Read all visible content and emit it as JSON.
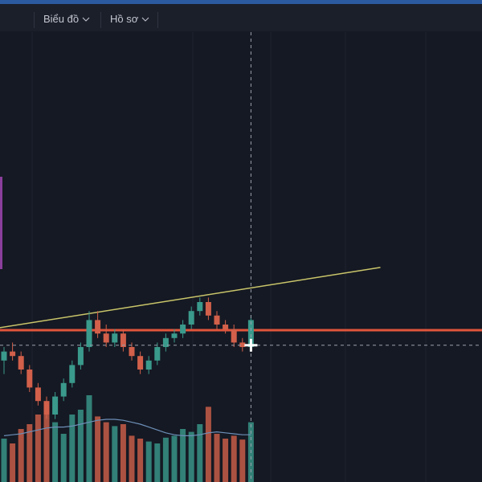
{
  "toolbar": {
    "items": [
      "Biểu đồ",
      "Hồ sơ"
    ]
  },
  "chart_data": {
    "type": "candlestick",
    "open": [
      27,
      29,
      28,
      25,
      21,
      18,
      15,
      19,
      22,
      26,
      30,
      36,
      33,
      31,
      33,
      30,
      28,
      25,
      27,
      30,
      32,
      33,
      35,
      38,
      40,
      37,
      35,
      34,
      31,
      30
    ],
    "high": [
      30,
      31,
      29,
      26,
      22,
      19,
      20,
      23,
      27,
      31,
      38,
      38,
      35,
      34,
      34,
      31,
      29,
      28,
      31,
      33,
      34,
      36,
      39,
      41,
      41,
      38,
      36,
      35,
      32,
      37
    ],
    "low": [
      24,
      27,
      24,
      20,
      17,
      14,
      14,
      18,
      21,
      25,
      29,
      32,
      30,
      30,
      29,
      27,
      24,
      24,
      26,
      29,
      31,
      32,
      34,
      37,
      36,
      34,
      33,
      30,
      29,
      29
    ],
    "close": [
      29,
      28,
      25,
      21,
      18,
      15,
      19,
      22,
      26,
      30,
      36,
      33,
      31,
      33,
      30,
      28,
      25,
      27,
      30,
      32,
      33,
      35,
      38,
      40,
      37,
      35,
      34,
      31,
      30,
      36
    ],
    "volume": [
      45,
      40,
      55,
      60,
      70,
      80,
      62,
      50,
      70,
      75,
      90,
      68,
      62,
      58,
      60,
      48,
      45,
      42,
      40,
      46,
      48,
      55,
      52,
      60,
      78,
      50,
      45,
      48,
      44,
      62
    ],
    "volume_ma": [
      48,
      49,
      50,
      52,
      54,
      56,
      57,
      57,
      58,
      60,
      62,
      64,
      65,
      65,
      64,
      62,
      60,
      57,
      54,
      51,
      49,
      48,
      48,
      49,
      51,
      52,
      51,
      50,
      49,
      49
    ],
    "ylim": [
      0,
      100
    ],
    "y2lim": [
      0,
      100
    ],
    "up_color": "#3a9a8c",
    "down_color": "#d2604a",
    "ma_color": "#6d8fb8",
    "levels": [
      {
        "value": 33.75,
        "color": "#e0553c"
      }
    ],
    "trendline": {
      "x": [
        -0.5,
        44.2
      ],
      "y": [
        34.3,
        47.7
      ],
      "color": "#c9c56a"
    },
    "crosshair": {
      "x": 29,
      "y": 30.4
    }
  }
}
